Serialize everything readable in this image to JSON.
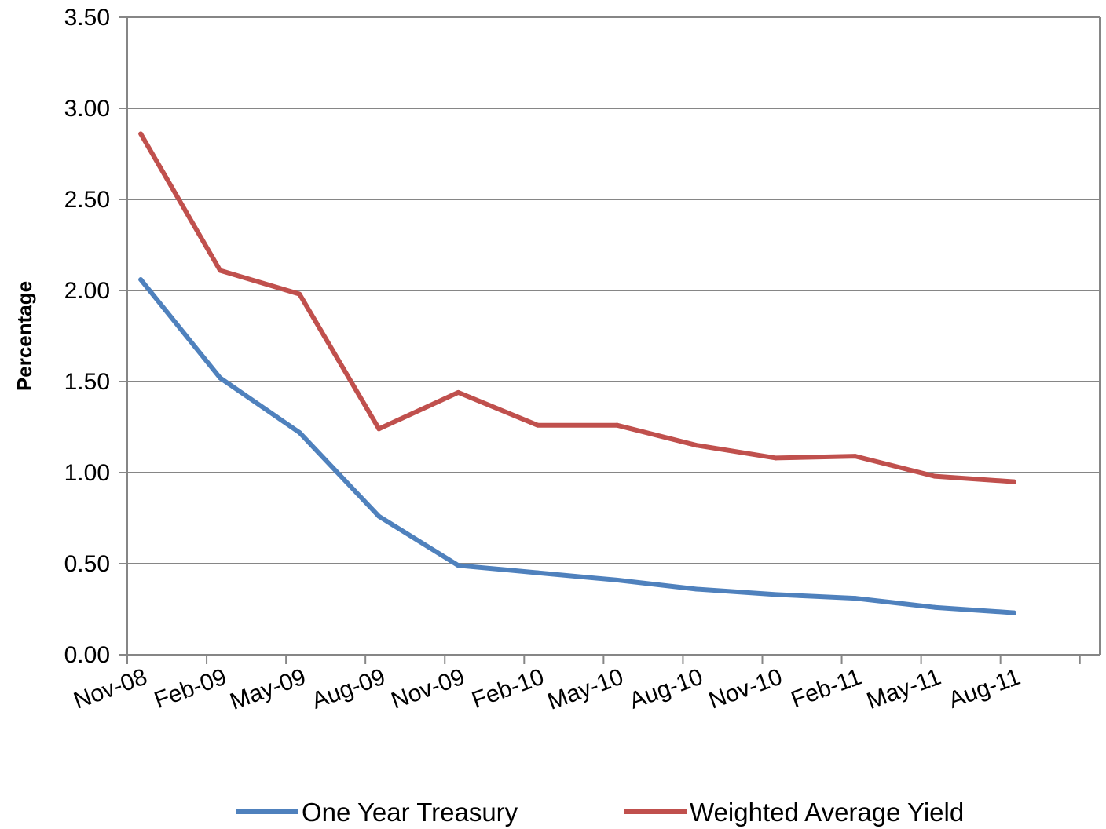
{
  "chart_data": {
    "type": "line",
    "title": "",
    "xlabel": "",
    "ylabel": "Percentage",
    "ylim": [
      0,
      3.5
    ],
    "yticks": [
      "0.00",
      "0.50",
      "1.00",
      "1.50",
      "2.00",
      "2.50",
      "3.00",
      "3.50"
    ],
    "categories": [
      "Nov-08",
      "Feb-09",
      "May-09",
      "Aug-09",
      "Nov-09",
      "Feb-10",
      "May-10",
      "Aug-10",
      "Nov-10",
      "Feb-11",
      "May-11",
      "Aug-11"
    ],
    "grid": true,
    "legend_position": "bottom",
    "series": [
      {
        "name": "One Year Treasury",
        "color": "#4F81BD",
        "values": [
          2.06,
          1.52,
          1.22,
          0.76,
          0.49,
          0.45,
          0.41,
          0.36,
          0.33,
          0.31,
          0.26,
          0.23
        ]
      },
      {
        "name": "Weighted Average Yield",
        "color": "#C0504D",
        "values": [
          2.86,
          2.11,
          1.98,
          1.24,
          1.44,
          1.26,
          1.26,
          1.15,
          1.08,
          1.09,
          0.98,
          0.95
        ]
      }
    ]
  }
}
